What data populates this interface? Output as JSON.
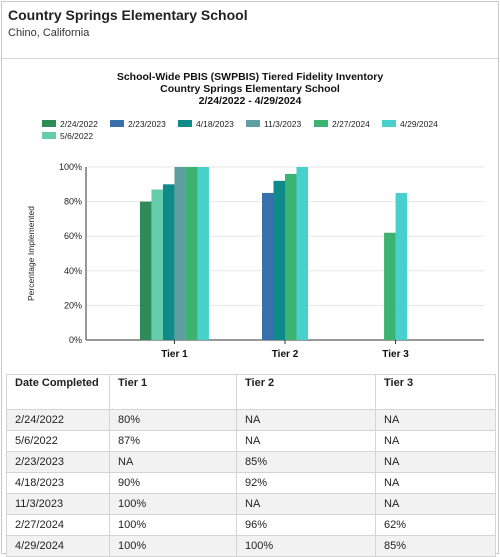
{
  "header": {
    "school_name": "Country Springs Elementary School",
    "location": "Chino, California"
  },
  "chart_data": {
    "type": "bar",
    "title": [
      "School-Wide PBIS (SWPBIS) Tiered Fidelity Inventory",
      "Country Springs Elementary School",
      "2/24/2022 - 4/29/2024"
    ],
    "ylabel": "Percentage Implemented",
    "xlabel": "",
    "ylim": [
      0,
      100
    ],
    "yticks": [
      "0%",
      "20%",
      "40%",
      "60%",
      "80%",
      "100%"
    ],
    "categories": [
      "Tier 1",
      "Tier 2",
      "Tier 3"
    ],
    "legend_position": "top",
    "series": [
      {
        "name": "2/24/2022",
        "color": "#2e8b57",
        "values": [
          80,
          null,
          null
        ]
      },
      {
        "name": "5/6/2022",
        "color": "#66cdaa",
        "values": [
          87,
          null,
          null
        ]
      },
      {
        "name": "2/23/2023",
        "color": "#3a6fae",
        "values": [
          null,
          85,
          null
        ]
      },
      {
        "name": "4/18/2023",
        "color": "#0f8a8a",
        "values": [
          90,
          92,
          null
        ]
      },
      {
        "name": "11/3/2023",
        "color": "#5f9ea0",
        "values": [
          100,
          null,
          null
        ]
      },
      {
        "name": "2/27/2024",
        "color": "#3cb371",
        "values": [
          100,
          96,
          62
        ]
      },
      {
        "name": "4/29/2024",
        "color": "#48d1cc",
        "values": [
          100,
          100,
          85
        ]
      }
    ],
    "legend_order": [
      "2/24/2022",
      "2/23/2023",
      "4/18/2023",
      "11/3/2023",
      "2/27/2024",
      "4/29/2024",
      "5/6/2022"
    ]
  },
  "table": {
    "headers": [
      "Date Completed",
      "Tier 1",
      "Tier 2",
      "Tier 3"
    ],
    "rows": [
      [
        "2/24/2022",
        "80%",
        "NA",
        "NA"
      ],
      [
        "5/6/2022",
        "87%",
        "NA",
        "NA"
      ],
      [
        "2/23/2023",
        "NA",
        "85%",
        "NA"
      ],
      [
        "4/18/2023",
        "90%",
        "92%",
        "NA"
      ],
      [
        "11/3/2023",
        "100%",
        "NA",
        "NA"
      ],
      [
        "2/27/2024",
        "100%",
        "96%",
        "62%"
      ],
      [
        "4/29/2024",
        "100%",
        "100%",
        "85%"
      ]
    ]
  }
}
